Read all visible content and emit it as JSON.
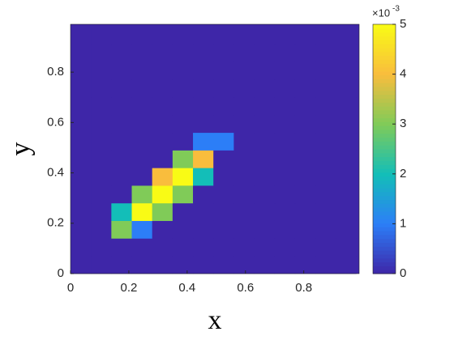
{
  "chart_data": {
    "type": "heatmap",
    "x_label": "x",
    "y_label": "y",
    "x": [
      0.035,
      0.105,
      0.175,
      0.245,
      0.315,
      0.385,
      0.455,
      0.525,
      0.595,
      0.665,
      0.735,
      0.805,
      0.875,
      0.945
    ],
    "y": [
      0.035,
      0.105,
      0.175,
      0.245,
      0.315,
      0.385,
      0.455,
      0.525,
      0.595,
      0.665,
      0.735,
      0.805,
      0.875,
      0.945
    ],
    "z": [
      [
        0,
        0,
        0,
        0,
        0,
        0,
        0,
        0,
        0,
        0,
        0,
        0,
        0,
        0
      ],
      [
        0,
        0,
        0,
        0,
        0,
        0,
        0,
        0,
        0,
        0,
        0,
        0,
        0,
        0
      ],
      [
        0,
        0,
        3,
        1,
        0,
        0,
        0,
        0,
        0,
        0,
        0,
        0,
        0,
        0
      ],
      [
        0,
        0,
        2,
        5,
        3,
        0,
        0,
        0,
        0,
        0,
        0,
        0,
        0,
        0
      ],
      [
        0,
        0,
        0,
        3,
        5,
        3,
        0,
        0,
        0,
        0,
        0,
        0,
        0,
        0
      ],
      [
        0,
        0,
        0,
        0,
        4,
        5,
        2,
        0,
        0,
        0,
        0,
        0,
        0,
        0
      ],
      [
        0,
        0,
        0,
        0,
        0,
        3,
        4,
        0,
        0,
        0,
        0,
        0,
        0,
        0
      ],
      [
        0,
        0,
        0,
        0,
        0,
        0,
        1,
        1,
        0,
        0,
        0,
        0,
        0,
        0
      ],
      [
        0,
        0,
        0,
        0,
        0,
        0,
        0,
        0,
        0,
        0,
        0,
        0,
        0,
        0
      ],
      [
        0,
        0,
        0,
        0,
        0,
        0,
        0,
        0,
        0,
        0,
        0,
        0,
        0,
        0
      ],
      [
        0,
        0,
        0,
        0,
        0,
        0,
        0,
        0,
        0,
        0,
        0,
        0,
        0,
        0
      ],
      [
        0,
        0,
        0,
        0,
        0,
        0,
        0,
        0,
        0,
        0,
        0,
        0,
        0,
        0
      ],
      [
        0,
        0,
        0,
        0,
        0,
        0,
        0,
        0,
        0,
        0,
        0,
        0,
        0,
        0
      ],
      [
        0,
        0,
        0,
        0,
        0,
        0,
        0,
        0,
        0,
        0,
        0,
        0,
        0,
        0
      ]
    ],
    "xlim": [
      0,
      0.99
    ],
    "ylim": [
      0,
      0.99
    ],
    "xticks": [
      0,
      0.2,
      0.4,
      0.6,
      0.8
    ],
    "yticks": [
      0,
      0.2,
      0.4,
      0.6,
      0.8
    ],
    "colormap": [
      "#3e26a8",
      "#2c7ef7",
      "#13beb8",
      "#80cb58",
      "#f9bd3d",
      "#f9fb15"
    ],
    "colorbar": {
      "lim": [
        0,
        5
      ],
      "ticks": [
        0,
        1,
        2,
        3,
        4,
        5
      ],
      "multiplier_base": "×10",
      "multiplier_exponent": "-3"
    }
  }
}
